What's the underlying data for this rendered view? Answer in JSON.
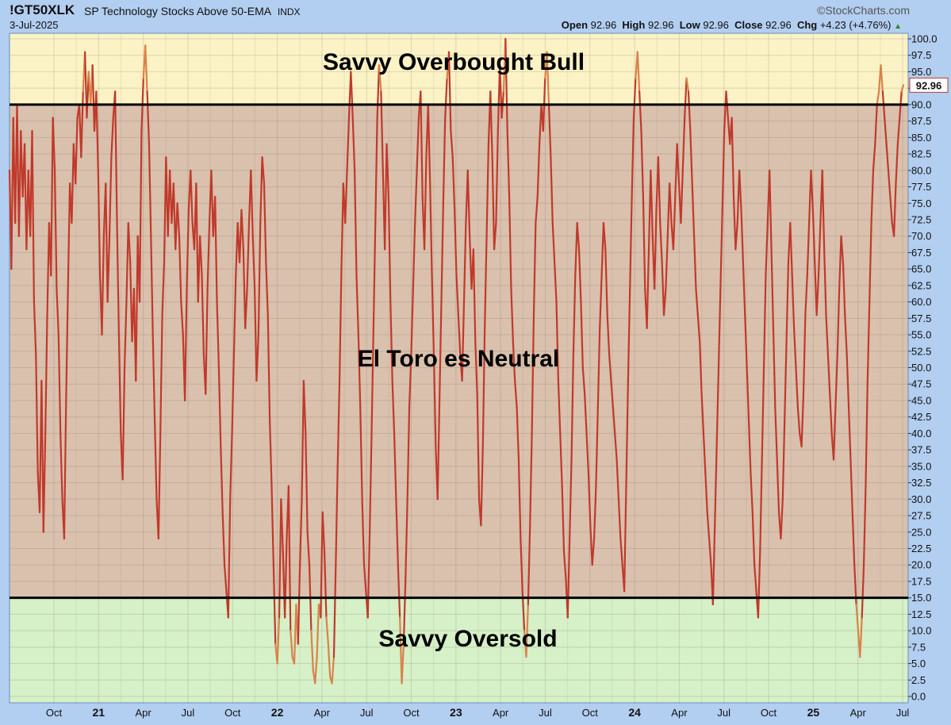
{
  "header": {
    "symbol": "!GT50XLK",
    "name": "SP Technology Stocks Above 50-EMA",
    "index": "INDX",
    "date": "3-Jul-2025",
    "logo": "©StockCharts.com",
    "open_label": "Open",
    "open": "92.96",
    "high_label": "High",
    "high": "92.96",
    "low_label": "Low",
    "low": "92.96",
    "close_label": "Close",
    "close": "92.96",
    "chg_label": "Chg",
    "chg": "+4.23 (+4.76%)",
    "chg_marker": "▲"
  },
  "colors": {
    "frame": "#b2cef0",
    "overbought_zone": "#fbf2c5",
    "neutral_zone": "#d9c1ad",
    "oversold_zone": "#d6f0c7",
    "line": "#c0392b",
    "line_in_zone": "#d9824a",
    "threshold": "#000000"
  },
  "chart_data": {
    "type": "line",
    "series": [
      {
        "name": "",
        "values": [
          80,
          65,
          88,
          72,
          90,
          70,
          86,
          76,
          84,
          68,
          80,
          70,
          86,
          60,
          52,
          34,
          28,
          48,
          25,
          40,
          58,
          72,
          64,
          88,
          80,
          62,
          55,
          40,
          30,
          24,
          45,
          62,
          78,
          72,
          84,
          78,
          88,
          90,
          82,
          92,
          98,
          88,
          95,
          90,
          96,
          86,
          92,
          80,
          64,
          55,
          70,
          78,
          60,
          70,
          82,
          88,
          92,
          72,
          55,
          40,
          33,
          50,
          60,
          72,
          66,
          54,
          62,
          48,
          70,
          60,
          86,
          94,
          99,
          92,
          84,
          70,
          55,
          42,
          30,
          24,
          40,
          58,
          66,
          82,
          70,
          80,
          72,
          78,
          68,
          75,
          70,
          60,
          55,
          45,
          62,
          74,
          80,
          72,
          68,
          78,
          60,
          70,
          64,
          52,
          46,
          62,
          72,
          80,
          70,
          76,
          60,
          50,
          38,
          28,
          20,
          16,
          12,
          30,
          40,
          52,
          64,
          72,
          66,
          74,
          68,
          56,
          62,
          72,
          80,
          70,
          62,
          48,
          55,
          72,
          82,
          78,
          66,
          58,
          42,
          32,
          20,
          8,
          5,
          12,
          30,
          22,
          12,
          24,
          32,
          10,
          6,
          5,
          14,
          8,
          20,
          30,
          48,
          40,
          25,
          20,
          10,
          4,
          2,
          6,
          14,
          12,
          28,
          22,
          12,
          8,
          3,
          2,
          6,
          20,
          35,
          48,
          65,
          78,
          72,
          80,
          88,
          95,
          88,
          80,
          64,
          55,
          44,
          30,
          20,
          16,
          12,
          25,
          40,
          56,
          72,
          88,
          96,
          92,
          80,
          68,
          84,
          76,
          60,
          48,
          40,
          30,
          20,
          12,
          2,
          8,
          18,
          30,
          44,
          52,
          62,
          72,
          80,
          88,
          92,
          76,
          68,
          82,
          90,
          78,
          64,
          52,
          38,
          30,
          45,
          60,
          75,
          88,
          94,
          98,
          86,
          82,
          74,
          64,
          58,
          52,
          48,
          60,
          72,
          80,
          70,
          62,
          68,
          54,
          46,
          30,
          26,
          38,
          56,
          70,
          84,
          92,
          82,
          68,
          72,
          86,
          96,
          88,
          92,
          100,
          86,
          76,
          62,
          54,
          48,
          44,
          36,
          24,
          16,
          10,
          6,
          14,
          26,
          40,
          58,
          72,
          76,
          84,
          90,
          86,
          94,
          98,
          90,
          82,
          72,
          66,
          60,
          48,
          40,
          32,
          22,
          18,
          12,
          24,
          36,
          52,
          64,
          72,
          68,
          60,
          50,
          46,
          40,
          34,
          26,
          20,
          24,
          32,
          44,
          56,
          64,
          72,
          68,
          58,
          52,
          48,
          44,
          40,
          36,
          30,
          24,
          20,
          16,
          32,
          48,
          62,
          76,
          88,
          94,
          98,
          92,
          86,
          76,
          62,
          56,
          68,
          80,
          70,
          62,
          74,
          82,
          72,
          66,
          58,
          62,
          70,
          78,
          72,
          68,
          76,
          84,
          78,
          72,
          80,
          88,
          94,
          92,
          86,
          78,
          70,
          62,
          58,
          54,
          46,
          40,
          34,
          28,
          24,
          20,
          14,
          26,
          38,
          50,
          62,
          74,
          86,
          92,
          88,
          84,
          88,
          76,
          68,
          72,
          80,
          74,
          66,
          58,
          50,
          42,
          34,
          28,
          20,
          16,
          12,
          22,
          36,
          50,
          64,
          72,
          80,
          68,
          56,
          44,
          36,
          28,
          24,
          30,
          42,
          54,
          66,
          72,
          64,
          56,
          50,
          44,
          40,
          38,
          46,
          58,
          64,
          72,
          80,
          74,
          66,
          58,
          64,
          72,
          80,
          68,
          58,
          52,
          46,
          40,
          36,
          44,
          52,
          62,
          70,
          66,
          58,
          52,
          44,
          36,
          28,
          20,
          14,
          10,
          6,
          12,
          20,
          32,
          48,
          60,
          72,
          80,
          84,
          90,
          92,
          96,
          92,
          88,
          84,
          80,
          76,
          72,
          70,
          78,
          84,
          88,
          92,
          92.96
        ]
      }
    ],
    "y_ticks": [
      "0.0",
      "2.5",
      "5.0",
      "7.5",
      "10.0",
      "12.5",
      "15.0",
      "17.5",
      "20.0",
      "22.5",
      "25.0",
      "27.5",
      "30.0",
      "32.5",
      "35.0",
      "37.5",
      "40.0",
      "42.5",
      "45.0",
      "47.5",
      "50.0",
      "52.5",
      "55.0",
      "57.5",
      "60.0",
      "62.5",
      "65.0",
      "67.5",
      "70.0",
      "72.5",
      "75.0",
      "77.5",
      "80.0",
      "82.5",
      "85.0",
      "87.5",
      "90.0",
      "92.5",
      "95.0",
      "97.5",
      "100.0"
    ],
    "x_ticks": [
      {
        "label": "Oct",
        "bold": false
      },
      {
        "label": "21",
        "bold": true
      },
      {
        "label": "Apr",
        "bold": false
      },
      {
        "label": "Jul",
        "bold": false
      },
      {
        "label": "Oct",
        "bold": false
      },
      {
        "label": "22",
        "bold": true
      },
      {
        "label": "Apr",
        "bold": false
      },
      {
        "label": "Jul",
        "bold": false
      },
      {
        "label": "Oct",
        "bold": false
      },
      {
        "label": "23",
        "bold": true
      },
      {
        "label": "Apr",
        "bold": false
      },
      {
        "label": "Jul",
        "bold": false
      },
      {
        "label": "Oct",
        "bold": false
      },
      {
        "label": "24",
        "bold": true
      },
      {
        "label": "Apr",
        "bold": false
      },
      {
        "label": "Jul",
        "bold": false
      },
      {
        "label": "Oct",
        "bold": false
      },
      {
        "label": "25",
        "bold": true
      },
      {
        "label": "Apr",
        "bold": false
      },
      {
        "label": "Jul",
        "bold": false
      }
    ],
    "ylim": [
      0,
      100
    ],
    "thresholds": [
      90,
      15
    ],
    "last_value_label": "92.96",
    "zones": [
      {
        "label": "Savvy Overbought Bull"
      },
      {
        "label": "El Toro es Neutral"
      },
      {
        "label": "Savvy Oversold"
      }
    ],
    "grid": true
  }
}
